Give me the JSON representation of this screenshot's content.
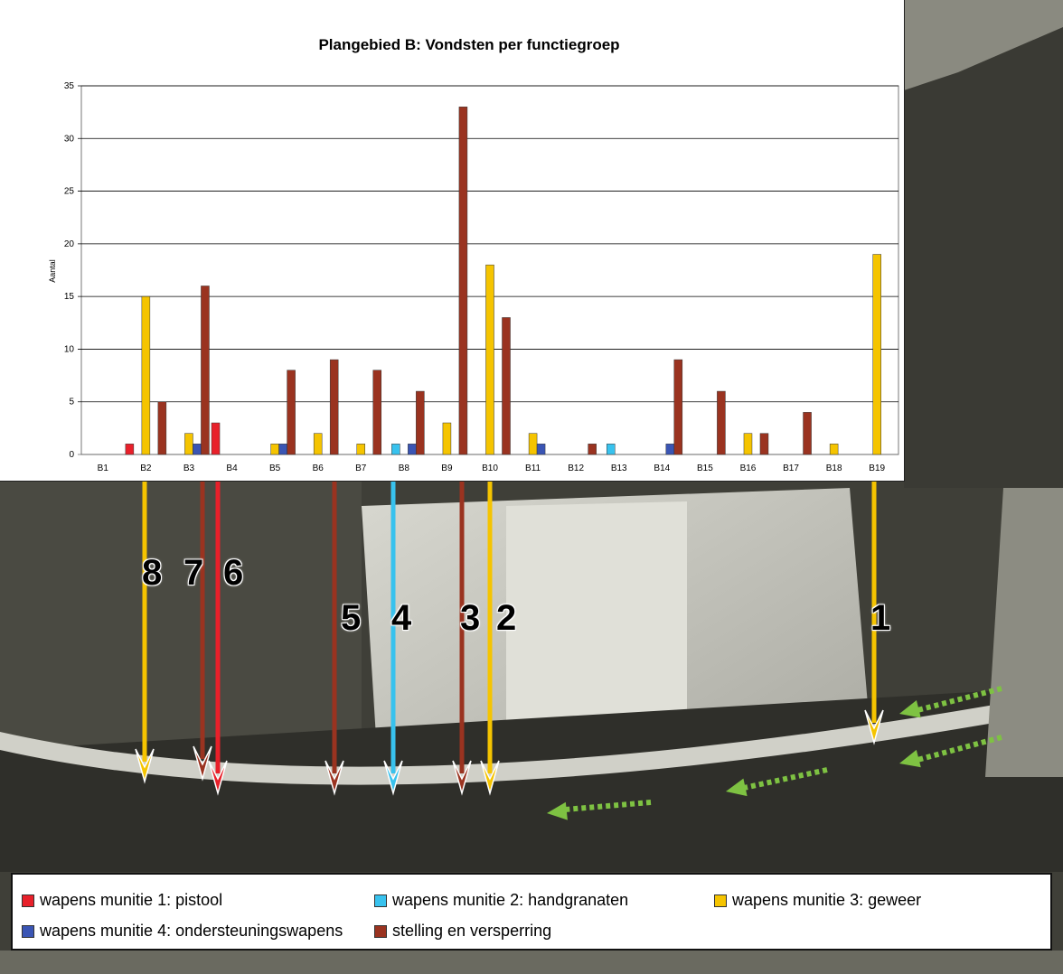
{
  "chart_data": {
    "type": "bar",
    "title": "Plangebied B: Vondsten per functiegroep",
    "xlabel": "",
    "ylabel": "Aantal",
    "ylim": [
      0,
      35
    ],
    "yticks": [
      0,
      5,
      10,
      15,
      20,
      25,
      30,
      35
    ],
    "grid": true,
    "categories": [
      "B1",
      "B2",
      "B3",
      "B4",
      "B5",
      "B6",
      "B7",
      "B8",
      "B9",
      "B10",
      "B11",
      "B12",
      "B13",
      "B14",
      "B15",
      "B16",
      "B17",
      "B18",
      "B19"
    ],
    "series": [
      {
        "name": "wapens munitie 1: pistool",
        "color": "#e8202a",
        "values": [
          0,
          1,
          0,
          3,
          0,
          0,
          0,
          0,
          0,
          0,
          0,
          0,
          0,
          0,
          0,
          0,
          0,
          0,
          0
        ]
      },
      {
        "name": "wapens munitie 2: handgranaten",
        "color": "#38c2ee",
        "values": [
          0,
          0,
          0,
          0,
          0,
          0,
          0,
          1,
          0,
          0,
          0,
          0,
          1,
          0,
          0,
          0,
          0,
          0,
          0
        ]
      },
      {
        "name": "wapens munitie 3: geweer",
        "color": "#f5c400",
        "values": [
          0,
          15,
          2,
          0,
          1,
          2,
          1,
          0,
          3,
          18,
          2,
          0,
          0,
          0,
          0,
          2,
          0,
          1,
          19
        ]
      },
      {
        "name": "wapens munitie 4: ondersteuningswapens",
        "color": "#3a55b4",
        "values": [
          0,
          0,
          1,
          0,
          1,
          0,
          0,
          1,
          0,
          0,
          1,
          0,
          0,
          1,
          0,
          0,
          0,
          0,
          0
        ]
      },
      {
        "name": "stelling en versperring",
        "color": "#9a3320",
        "values": [
          0,
          5,
          16,
          0,
          8,
          9,
          8,
          6,
          33,
          13,
          0,
          1,
          0,
          9,
          6,
          2,
          4,
          0,
          0
        ]
      }
    ],
    "legend_position": "bottom"
  },
  "annotations": {
    "numbers": [
      "8",
      "7",
      "6",
      "5",
      "4",
      "3",
      "2",
      "1"
    ]
  },
  "colors": {
    "pistool": "#e8202a",
    "handgranaten": "#38c2ee",
    "geweer": "#f5c400",
    "ondersteuningswapens": "#3a55b4",
    "stelling": "#9a3320",
    "green_arrow": "#7ec242"
  }
}
